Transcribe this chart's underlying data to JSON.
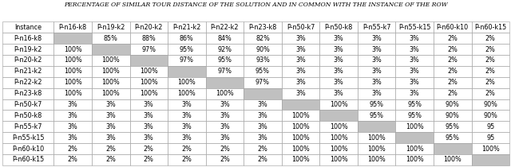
{
  "title": "PERCENTAGE OF SIMILAR TOUR DISTANCE OF THE SOLUTION AND IN COMMON WITH THE INSTANCE OF THE ROW",
  "columns": [
    "Instance",
    "P-n16-k8",
    "P-n19-k2",
    "P-n20-k2",
    "P-n21-k2",
    "P-n22-k2",
    "P-n23-k8",
    "P-n50-k7",
    "P-n50-k8",
    "P-n55-k7",
    "P-n55-k15",
    "P-n60-k10",
    "P-n60-k15"
  ],
  "rows": [
    [
      "P-n16-k8",
      "",
      "85%",
      "88%",
      "86%",
      "84%",
      "82%",
      "3%",
      "3%",
      "3%",
      "3%",
      "2%",
      "2%"
    ],
    [
      "P-n19-k2",
      "100%",
      "",
      "97%",
      "95%",
      "92%",
      "90%",
      "3%",
      "3%",
      "3%",
      "3%",
      "2%",
      "2%"
    ],
    [
      "P-n20-k2",
      "100%",
      "100%",
      "",
      "97%",
      "95%",
      "93%",
      "3%",
      "3%",
      "3%",
      "3%",
      "2%",
      "2%"
    ],
    [
      "P-n21-k2",
      "100%",
      "100%",
      "100%",
      "",
      "97%",
      "95%",
      "3%",
      "3%",
      "3%",
      "3%",
      "2%",
      "2%"
    ],
    [
      "P-n22-k2",
      "100%",
      "100%",
      "100%",
      "100%",
      "",
      "97%",
      "3%",
      "3%",
      "3%",
      "3%",
      "2%",
      "2%"
    ],
    [
      "P-n23-k8",
      "100%",
      "100%",
      "100%",
      "100%",
      "100%",
      "",
      "3%",
      "3%",
      "3%",
      "3%",
      "2%",
      "2%"
    ],
    [
      "P-n50-k7",
      "3%",
      "3%",
      "3%",
      "3%",
      "3%",
      "3%",
      "",
      "100%",
      "95%",
      "95%",
      "90%",
      "90%"
    ],
    [
      "P-n50-k8",
      "3%",
      "3%",
      "3%",
      "3%",
      "3%",
      "3%",
      "100%",
      "",
      "95%",
      "95%",
      "90%",
      "90%"
    ],
    [
      "P-n55-k7",
      "3%",
      "3%",
      "3%",
      "3%",
      "3%",
      "3%",
      "100%",
      "100%",
      "",
      "100%",
      "95%",
      "95"
    ],
    [
      "P-n55-k15",
      "3%",
      "3%",
      "3%",
      "3%",
      "3%",
      "3%",
      "100%",
      "100%",
      "100%",
      "",
      "95%",
      "95"
    ],
    [
      "P-n60-k10",
      "2%",
      "2%",
      "2%",
      "2%",
      "2%",
      "2%",
      "100%",
      "100%",
      "100%",
      "100%",
      "",
      "100%"
    ],
    [
      "P-n60-k15",
      "2%",
      "2%",
      "2%",
      "2%",
      "2%",
      "2%",
      "100%",
      "100%",
      "100%",
      "100%",
      "100%",
      ""
    ]
  ],
  "diagonal_color": "#c0c0c0",
  "cell_bg": "#ffffff",
  "border_color": "#999999",
  "title_fontsize": 5.5,
  "cell_fontsize": 5.8,
  "header_fontsize": 5.8,
  "col_weights": [
    1.35,
    1.0,
    1.0,
    1.0,
    1.0,
    1.0,
    1.0,
    1.0,
    1.0,
    1.0,
    1.0,
    1.0,
    1.0
  ]
}
